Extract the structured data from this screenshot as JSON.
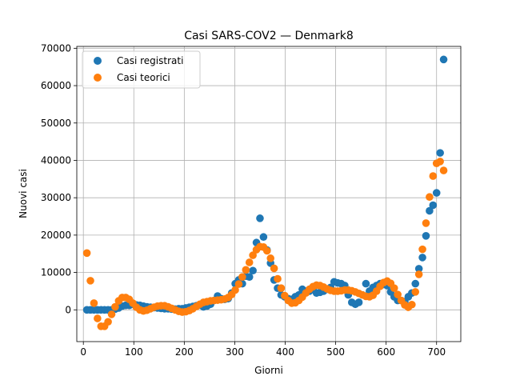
{
  "chart_data": {
    "type": "scatter",
    "title": "Casi SARS-COV2 — Denmark8",
    "xlabel": "Giorni",
    "ylabel": "Nuovi casi",
    "xlim": [
      -13,
      748
    ],
    "ylim": [
      -8500,
      70500
    ],
    "xticks": [
      0,
      100,
      200,
      300,
      400,
      500,
      600,
      700
    ],
    "yticks": [
      0,
      10000,
      20000,
      30000,
      40000,
      50000,
      60000,
      70000
    ],
    "grid": true,
    "legend": "top-left",
    "series": [
      {
        "name": "Casi registrati",
        "color": "#1f77b4",
        "points": [
          [
            7,
            0
          ],
          [
            14,
            0
          ],
          [
            21,
            0
          ],
          [
            28,
            0
          ],
          [
            35,
            0
          ],
          [
            42,
            0
          ],
          [
            49,
            0
          ],
          [
            56,
            0
          ],
          [
            63,
            200
          ],
          [
            70,
            500
          ],
          [
            77,
            1000
          ],
          [
            84,
            1200
          ],
          [
            91,
            1200
          ],
          [
            98,
            1500
          ],
          [
            105,
            1300
          ],
          [
            112,
            1200
          ],
          [
            119,
            1000
          ],
          [
            126,
            800
          ],
          [
            133,
            700
          ],
          [
            140,
            600
          ],
          [
            147,
            500
          ],
          [
            154,
            400
          ],
          [
            161,
            300
          ],
          [
            168,
            300
          ],
          [
            175,
            200
          ],
          [
            182,
            200
          ],
          [
            189,
            300
          ],
          [
            196,
            300
          ],
          [
            203,
            500
          ],
          [
            210,
            700
          ],
          [
            217,
            900
          ],
          [
            224,
            1100
          ],
          [
            231,
            1300
          ],
          [
            238,
            800
          ],
          [
            245,
            1000
          ],
          [
            252,
            1500
          ],
          [
            259,
            2500
          ],
          [
            266,
            3700
          ],
          [
            273,
            3000
          ],
          [
            280,
            2800
          ],
          [
            287,
            3000
          ],
          [
            294,
            4500
          ],
          [
            301,
            7000
          ],
          [
            308,
            8000
          ],
          [
            315,
            7000
          ],
          [
            322,
            9000
          ],
          [
            329,
            8800
          ],
          [
            336,
            10500
          ],
          [
            343,
            18000
          ],
          [
            350,
            24500
          ],
          [
            357,
            19500
          ],
          [
            364,
            16000
          ],
          [
            371,
            12500
          ],
          [
            378,
            8000
          ],
          [
            385,
            5800
          ],
          [
            392,
            4000
          ],
          [
            399,
            3500
          ],
          [
            406,
            3000
          ],
          [
            413,
            2800
          ],
          [
            420,
            3500
          ],
          [
            427,
            4000
          ],
          [
            434,
            5500
          ],
          [
            441,
            5000
          ],
          [
            448,
            5000
          ],
          [
            455,
            5500
          ],
          [
            462,
            4500
          ],
          [
            469,
            4700
          ],
          [
            476,
            5000
          ],
          [
            483,
            5500
          ],
          [
            490,
            6000
          ],
          [
            497,
            7500
          ],
          [
            504,
            7200
          ],
          [
            511,
            7000
          ],
          [
            518,
            6500
          ],
          [
            525,
            4000
          ],
          [
            532,
            2000
          ],
          [
            539,
            1500
          ],
          [
            546,
            2000
          ],
          [
            553,
            4000
          ],
          [
            560,
            7000
          ],
          [
            567,
            5000
          ],
          [
            574,
            6000
          ],
          [
            581,
            6500
          ],
          [
            588,
            7000
          ],
          [
            595,
            6800
          ],
          [
            602,
            6500
          ],
          [
            609,
            4800
          ],
          [
            616,
            3500
          ],
          [
            623,
            2500
          ],
          [
            630,
            2500
          ],
          [
            637,
            2200
          ],
          [
            644,
            3500
          ],
          [
            651,
            4500
          ],
          [
            658,
            7000
          ],
          [
            665,
            11000
          ],
          [
            672,
            14000
          ],
          [
            679,
            19800
          ],
          [
            686,
            26500
          ],
          [
            693,
            28000
          ],
          [
            700,
            31300
          ],
          [
            707,
            42000
          ],
          [
            714,
            67000
          ]
        ]
      },
      {
        "name": "Casi teorici",
        "color": "#ff7f0e",
        "points": [
          [
            7,
            15200
          ],
          [
            14,
            7800
          ],
          [
            21,
            1800
          ],
          [
            28,
            -2300
          ],
          [
            35,
            -4400
          ],
          [
            42,
            -4400
          ],
          [
            49,
            -3200
          ],
          [
            56,
            -1200
          ],
          [
            63,
            800
          ],
          [
            70,
            2400
          ],
          [
            77,
            3300
          ],
          [
            84,
            3300
          ],
          [
            91,
            2800
          ],
          [
            98,
            1800
          ],
          [
            105,
            700
          ],
          [
            112,
            0
          ],
          [
            119,
            -300
          ],
          [
            126,
            -100
          ],
          [
            133,
            300
          ],
          [
            140,
            700
          ],
          [
            147,
            1000
          ],
          [
            154,
            1100
          ],
          [
            161,
            1100
          ],
          [
            168,
            800
          ],
          [
            175,
            400
          ],
          [
            182,
            0
          ],
          [
            189,
            -400
          ],
          [
            196,
            -600
          ],
          [
            203,
            -500
          ],
          [
            210,
            -200
          ],
          [
            217,
            300
          ],
          [
            224,
            900
          ],
          [
            231,
            1500
          ],
          [
            238,
            2000
          ],
          [
            245,
            2200
          ],
          [
            252,
            2400
          ],
          [
            259,
            2500
          ],
          [
            266,
            2600
          ],
          [
            273,
            2700
          ],
          [
            280,
            2900
          ],
          [
            287,
            3300
          ],
          [
            294,
            4100
          ],
          [
            301,
            5300
          ],
          [
            308,
            6900
          ],
          [
            315,
            8800
          ],
          [
            322,
            10700
          ],
          [
            329,
            12700
          ],
          [
            336,
            14600
          ],
          [
            343,
            16100
          ],
          [
            350,
            16900
          ],
          [
            357,
            16800
          ],
          [
            364,
            15800
          ],
          [
            371,
            13800
          ],
          [
            378,
            11100
          ],
          [
            385,
            8300
          ],
          [
            392,
            5800
          ],
          [
            399,
            3800
          ],
          [
            406,
            2500
          ],
          [
            413,
            1800
          ],
          [
            420,
            1900
          ],
          [
            427,
            2500
          ],
          [
            434,
            3400
          ],
          [
            441,
            4500
          ],
          [
            448,
            5500
          ],
          [
            455,
            6200
          ],
          [
            462,
            6600
          ],
          [
            469,
            6500
          ],
          [
            476,
            6100
          ],
          [
            483,
            5600
          ],
          [
            490,
            5200
          ],
          [
            497,
            5000
          ],
          [
            504,
            5000
          ],
          [
            511,
            5100
          ],
          [
            518,
            5300
          ],
          [
            525,
            5300
          ],
          [
            532,
            5100
          ],
          [
            539,
            4800
          ],
          [
            546,
            4400
          ],
          [
            553,
            4000
          ],
          [
            560,
            3600
          ],
          [
            567,
            3500
          ],
          [
            574,
            3900
          ],
          [
            581,
            5000
          ],
          [
            588,
            6300
          ],
          [
            595,
            7300
          ],
          [
            602,
            7700
          ],
          [
            609,
            7100
          ],
          [
            616,
            5800
          ],
          [
            623,
            4100
          ],
          [
            630,
            2500
          ],
          [
            637,
            1300
          ],
          [
            644,
            700
          ],
          [
            651,
            1400
          ],
          [
            658,
            4800
          ],
          [
            665,
            9500
          ],
          [
            672,
            16200
          ],
          [
            679,
            23200
          ],
          [
            686,
            30200
          ],
          [
            693,
            35800
          ],
          [
            700,
            39200
          ],
          [
            707,
            39700
          ],
          [
            714,
            37300
          ]
        ]
      }
    ]
  }
}
